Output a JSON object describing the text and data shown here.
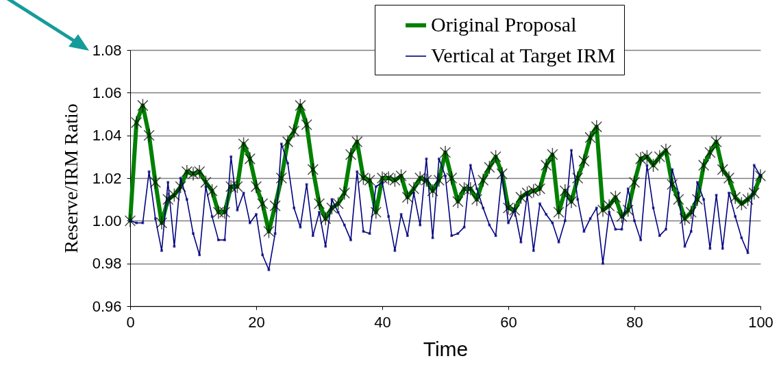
{
  "chart_data": {
    "type": "line",
    "xlabel": "Time",
    "ylabel": "Reserve/IRM Ratio",
    "xlim": [
      0,
      100
    ],
    "xticks": [
      0,
      20,
      40,
      60,
      80,
      100
    ],
    "ylim": [
      0.96,
      1.08
    ],
    "yticks": [
      0.96,
      0.98,
      {
        "value": 1,
        "label": "1.00"
      },
      1.02,
      1.04,
      1.06,
      1.08
    ],
    "grid": "y",
    "legend": "top right",
    "x": [
      0,
      1,
      2,
      3,
      4,
      5,
      6,
      7,
      8,
      9,
      10,
      11,
      12,
      13,
      14,
      15,
      16,
      17,
      18,
      19,
      20,
      21,
      22,
      23,
      24,
      25,
      26,
      27,
      28,
      29,
      30,
      31,
      32,
      33,
      34,
      35,
      36,
      37,
      38,
      39,
      40,
      41,
      42,
      43,
      44,
      45,
      46,
      47,
      48,
      49,
      50,
      51,
      52,
      53,
      54,
      55,
      56,
      57,
      58,
      59,
      60,
      61,
      62,
      63,
      64,
      65,
      66,
      67,
      68,
      69,
      70,
      71,
      72,
      73,
      74,
      75,
      76,
      77,
      78,
      79,
      80,
      81,
      82,
      83,
      84,
      85,
      86,
      87,
      88,
      89,
      90,
      91,
      92,
      93,
      94,
      95,
      96,
      97,
      98,
      99,
      100
    ],
    "series": [
      {
        "name": "Original Proposal",
        "color": "#008000",
        "marker": "cross",
        "values": [
          1.0,
          1.046,
          1.054,
          1.04,
          1.018,
          0.999,
          1.01,
          1.012,
          1.016,
          1.023,
          1.022,
          1.023,
          1.018,
          1.014,
          1.004,
          1.004,
          1.016,
          1.016,
          1.036,
          1.029,
          1.016,
          1.008,
          0.995,
          1.007,
          1.02,
          1.037,
          1.042,
          1.054,
          1.045,
          1.024,
          1.008,
          1.001,
          1.006,
          1.008,
          1.013,
          1.031,
          1.037,
          1.02,
          1.019,
          1.004,
          1.02,
          1.02,
          1.019,
          1.021,
          1.011,
          1.015,
          1.02,
          1.019,
          1.014,
          1.019,
          1.032,
          1.02,
          1.009,
          1.015,
          1.015,
          1.01,
          1.019,
          1.025,
          1.03,
          1.022,
          1.006,
          1.005,
          1.011,
          1.013,
          1.014,
          1.015,
          1.026,
          1.031,
          1.004,
          1.014,
          1.009,
          1.02,
          1.028,
          1.039,
          1.044,
          1.005,
          1.007,
          1.011,
          1.002,
          1.005,
          1.018,
          1.029,
          1.03,
          1.026,
          1.03,
          1.033,
          1.017,
          1.01,
          1.001,
          1.004,
          1.01,
          1.026,
          1.032,
          1.037,
          1.024,
          1.02,
          1.011,
          1.008,
          1.01,
          1.013,
          1.021
        ]
      },
      {
        "name": "Vertical at Target IRM",
        "color": "#000080",
        "marker": "square",
        "values": [
          1.0,
          0.999,
          0.999,
          1.023,
          1.001,
          0.986,
          1.018,
          0.988,
          1.02,
          1.01,
          0.994,
          0.984,
          1.016,
          1.002,
          0.991,
          0.991,
          1.03,
          1.005,
          1.013,
          0.999,
          1.003,
          0.984,
          0.977,
          0.994,
          1.036,
          1.027,
          1.006,
          0.997,
          1.017,
          0.993,
          1.004,
          0.988,
          1.01,
          1.004,
          0.998,
          0.991,
          1.023,
          0.995,
          0.994,
          1.016,
          1.018,
          1.002,
          0.986,
          1.003,
          0.993,
          1.013,
          0.998,
          1.029,
          0.992,
          1.029,
          1.021,
          0.993,
          0.994,
          0.997,
          1.026,
          1.015,
          1.006,
          0.998,
          0.993,
          1.022,
          0.999,
          1.005,
          0.99,
          1.012,
          0.986,
          1.008,
          1.003,
          0.999,
          0.99,
          1.0,
          1.033,
          1.01,
          0.995,
          1.001,
          1.006,
          0.98,
          1.004,
          0.996,
          0.996,
          1.015,
          1.0,
          0.991,
          1.026,
          1.006,
          0.993,
          0.996,
          1.024,
          1.013,
          0.988,
          0.995,
          1.018,
          1.01,
          0.987,
          1.012,
          0.987,
          1.013,
          1.002,
          0.992,
          0.985,
          1.026,
          1.021
        ]
      }
    ]
  }
}
